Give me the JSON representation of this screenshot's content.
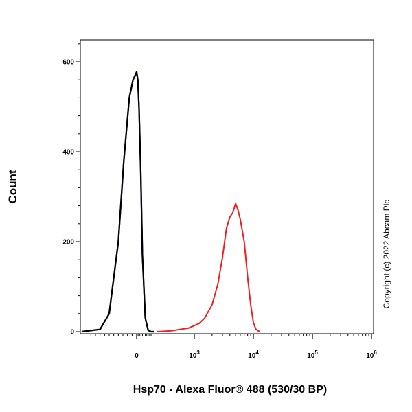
{
  "chart_data": {
    "type": "line",
    "xlabel": "Hsp70 - Alexa Fluor® 488 (530/30 BP)",
    "ylabel": "Count",
    "ylim": [
      0,
      650
    ],
    "x_scale": "biexponential",
    "y_ticks": [
      {
        "value": 0,
        "label": "0"
      },
      {
        "value": 200,
        "label": "200"
      },
      {
        "value": 400,
        "label": "400"
      },
      {
        "value": 600,
        "label": "600"
      }
    ],
    "x_ticks": [
      {
        "value": 0,
        "label": "0",
        "exp": ""
      },
      {
        "value": 1000,
        "label": "10",
        "exp": "3"
      },
      {
        "value": 10000,
        "label": "10",
        "exp": "4"
      },
      {
        "value": 100000,
        "label": "10",
        "exp": "5"
      },
      {
        "value": 1000000,
        "label": "10",
        "exp": "6"
      }
    ],
    "grid": false,
    "legend": "none",
    "series": [
      {
        "color": "#1f1fb4",
        "x": [
          -300,
          -200,
          -150,
          -100,
          -70,
          -40,
          -20,
          0,
          20,
          40,
          70,
          100,
          150,
          200,
          250,
          300
        ],
        "y": [
          0,
          5,
          40,
          200,
          380,
          520,
          560,
          575,
          560,
          500,
          360,
          170,
          30,
          3,
          0,
          0
        ]
      },
      {
        "color": "#000000",
        "x": [
          -300,
          -200,
          -150,
          -100,
          -70,
          -40,
          -20,
          0,
          20,
          40,
          70,
          100,
          150,
          200,
          250,
          300
        ],
        "y": [
          0,
          5,
          40,
          200,
          380,
          520,
          560,
          578,
          560,
          500,
          360,
          170,
          30,
          3,
          0,
          0
        ]
      },
      {
        "color": "#ee2020",
        "x": [
          350,
          600,
          900,
          1200,
          1500,
          2000,
          2500,
          3000,
          3500,
          4000,
          4500,
          5000,
          5500,
          6000,
          7000,
          8000,
          9000,
          10000,
          11000,
          12000,
          13000
        ],
        "y": [
          0,
          2,
          8,
          18,
          30,
          60,
          105,
          165,
          230,
          255,
          265,
          285,
          270,
          250,
          200,
          120,
          60,
          20,
          6,
          2,
          0
        ]
      }
    ]
  },
  "copyright": "Copyright (c) 2022 Abcam Plc"
}
